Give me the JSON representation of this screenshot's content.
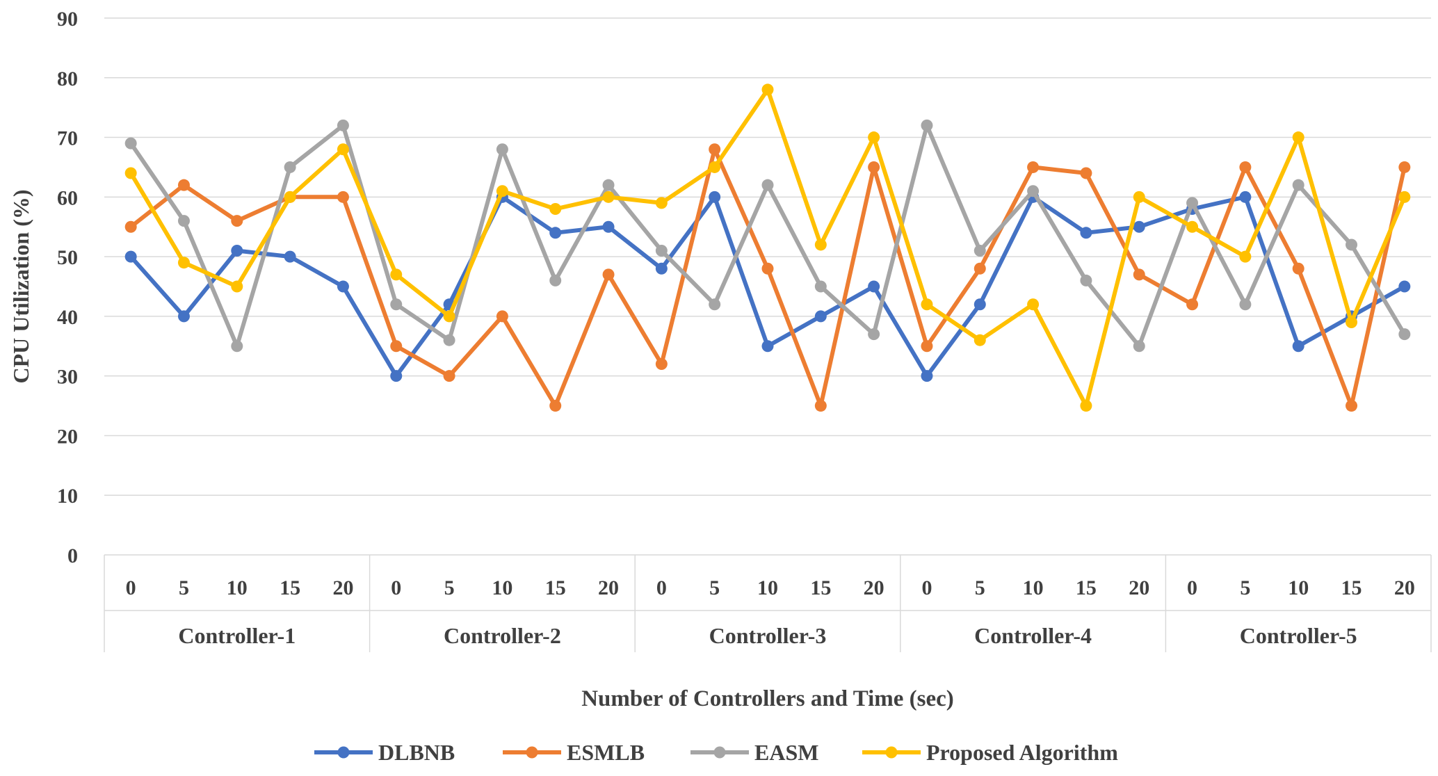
{
  "chart_data": {
    "type": "line",
    "title": "",
    "ylabel": "CPU Utilization (%)",
    "xlabel": "Number of Controllers and Time (sec)",
    "ylim": [
      0,
      90
    ],
    "yticks": [
      "0",
      "10",
      "20",
      "30",
      "40",
      "50",
      "60",
      "70",
      "80",
      "90"
    ],
    "grid": true,
    "groups": [
      "Controller-1",
      "Controller-2",
      "Controller-3",
      "Controller-4",
      "Controller-5"
    ],
    "times": [
      "0",
      "5",
      "10",
      "15",
      "20"
    ],
    "legend_position": "bottom",
    "series": [
      {
        "name": "DLBNB",
        "color": "#4472C4",
        "values": [
          50,
          40,
          51,
          50,
          45,
          30,
          42,
          60,
          54,
          55,
          48,
          60,
          35,
          40,
          45,
          30,
          42,
          60,
          54,
          55,
          58,
          60,
          35,
          40,
          45
        ]
      },
      {
        "name": "ESMLB",
        "color": "#ED7D31",
        "values": [
          55,
          62,
          56,
          60,
          60,
          35,
          30,
          40,
          25,
          47,
          32,
          68,
          48,
          25,
          65,
          35,
          48,
          65,
          64,
          47,
          42,
          65,
          48,
          25,
          65
        ]
      },
      {
        "name": "EASM",
        "color": "#A5A5A5",
        "values": [
          69,
          56,
          35,
          65,
          72,
          42,
          36,
          68,
          46,
          62,
          51,
          42,
          62,
          45,
          37,
          72,
          51,
          61,
          46,
          35,
          59,
          42,
          62,
          52,
          37
        ]
      },
      {
        "name": "Proposed Algorithm",
        "color": "#FFC000",
        "values": [
          64,
          49,
          45,
          60,
          68,
          47,
          40,
          61,
          58,
          60,
          59,
          65,
          78,
          52,
          70,
          42,
          36,
          42,
          25,
          60,
          55,
          50,
          70,
          39,
          60
        ]
      }
    ]
  }
}
